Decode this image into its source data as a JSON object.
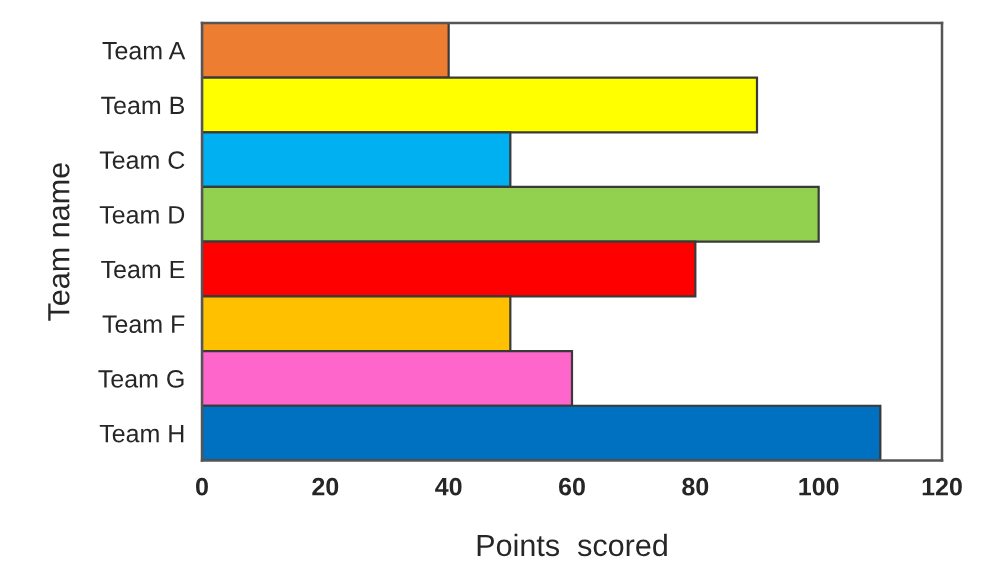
{
  "chart_data": {
    "type": "bar",
    "orientation": "horizontal",
    "xlabel": "Points  scored",
    "ylabel": "Team name",
    "categories": [
      "Team A",
      "Team B",
      "Team C",
      "Team D",
      "Team E",
      "Team F",
      "Team G",
      "Team H"
    ],
    "values": [
      40,
      90,
      50,
      100,
      80,
      50,
      60,
      110
    ],
    "colors": [
      "#ed7d31",
      "#ffff00",
      "#00b0f0",
      "#92d050",
      "#ff0000",
      "#ffc000",
      "#ff66cc",
      "#0070c0"
    ],
    "xlim": [
      0,
      120
    ],
    "xticks": [
      0,
      20,
      40,
      60,
      80,
      100,
      120
    ],
    "grid": false,
    "legend": false
  }
}
